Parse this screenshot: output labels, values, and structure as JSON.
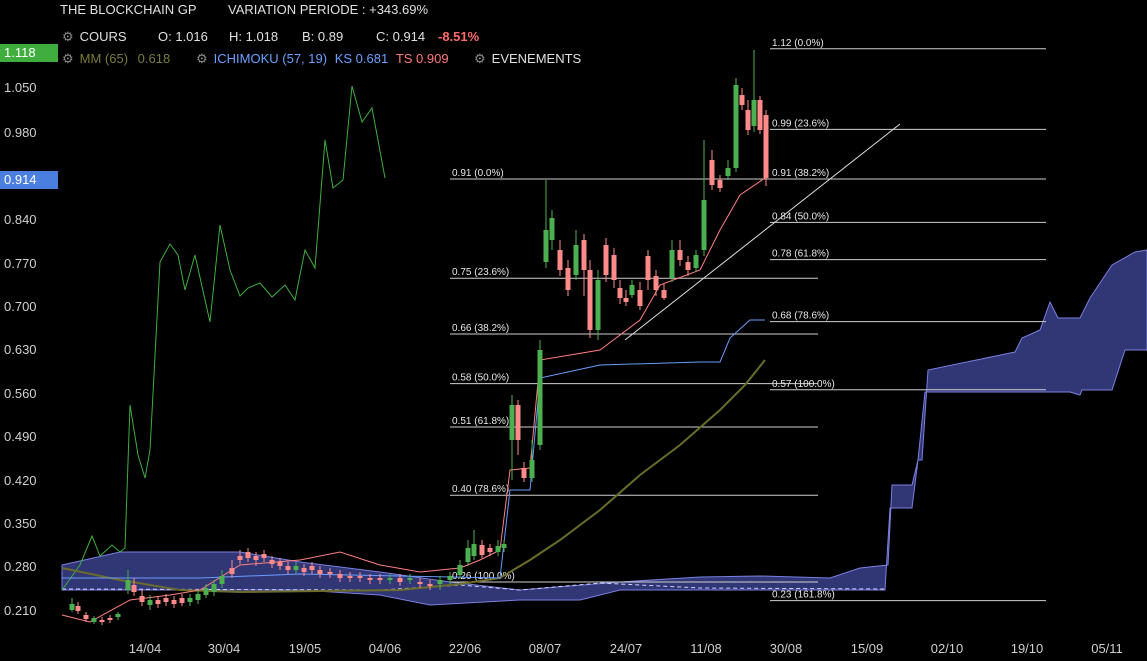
{
  "header": {
    "name": "THE BLOCKCHAIN GP",
    "variation": "VARIATION PERIODE : +343.69%",
    "cours_label": "COURS",
    "open": "O: 1.016",
    "high": "H: 1.018",
    "low": "B: 0.89",
    "close": "C: 0.914",
    "change": "-8.51%",
    "mm_label": "MM (65)",
    "mm_value": "0.618",
    "ichimoku_label": "ICHIMOKU (57, 19)",
    "ks_label": "KS 0.681",
    "ts_label": "TS 0.909",
    "events_label": "EVENEMENTS"
  },
  "price_tags": [
    {
      "text": "1.118",
      "value": 1.118,
      "color": "#3fae3f"
    },
    {
      "text": "0.914",
      "value": 0.914,
      "color": "#4a7fe0"
    }
  ],
  "chart_data": {
    "type": "candlestick",
    "y_ticks": [
      "1.050",
      "0.980",
      "0.914",
      "0.840",
      "0.770",
      "0.700",
      "0.630",
      "0.560",
      "0.490",
      "0.420",
      "0.350",
      "0.280",
      "0.210"
    ],
    "x_ticks": [
      "14/04",
      "30/04",
      "19/05",
      "04/06",
      "22/06",
      "08/07",
      "24/07",
      "11/08",
      "30/08",
      "15/09",
      "02/10",
      "19/10",
      "05/11"
    ],
    "ylim": [
      0.19,
      1.12
    ],
    "colors": {
      "up": "#4caf50",
      "down": "#ff8a8a",
      "cloud": "#3a3f8a",
      "ks": "#6a9cff",
      "ts": "#ff8080",
      "mm": "#6b6b2a",
      "volume_line": "#3fae3f"
    },
    "fibonacci_left": [
      {
        "label": "0.91  (0.0%)",
        "value": 0.91
      },
      {
        "label": "0.75  (23.6%)",
        "value": 0.75
      },
      {
        "label": "0.66  (38.2%)",
        "value": 0.66
      },
      {
        "label": "0.58  (50.0%)",
        "value": 0.58
      },
      {
        "label": "0.51  (61.8%)",
        "value": 0.51
      },
      {
        "label": "0.40  (78.6%)",
        "value": 0.4
      },
      {
        "label": "0.26  (100.0%)",
        "value": 0.26
      }
    ],
    "fibonacci_right": [
      {
        "label": "1.12  (0.0%)",
        "value": 1.12
      },
      {
        "label": "0.99  (23.6%)",
        "value": 0.99
      },
      {
        "label": "0.91  (38.2%)",
        "value": 0.91
      },
      {
        "label": "0.84  (50.0%)",
        "value": 0.84
      },
      {
        "label": "0.78  (61.8%)",
        "value": 0.78
      },
      {
        "label": "0.68  (78.6%)",
        "value": 0.68
      },
      {
        "label": "0.57  (100.0%)",
        "value": 0.57
      },
      {
        "label": "0.23  (161.8%)",
        "value": 0.23
      }
    ]
  }
}
